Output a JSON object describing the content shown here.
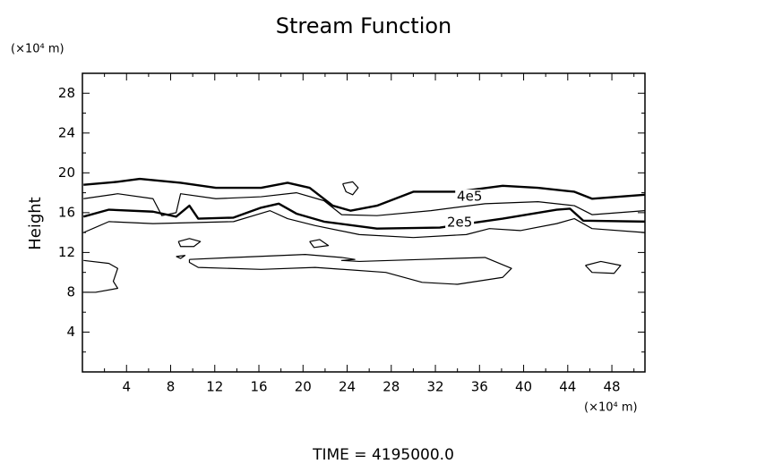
{
  "chart_data": {
    "type": "contour",
    "title": "Stream Function",
    "ylabel": "Height",
    "yunit": "(×10⁴ m)",
    "xunit": "(×10⁴ m)",
    "annotation": "TIME = 4195000.0",
    "xlim": [
      0,
      51
    ],
    "ylim": [
      0,
      30
    ],
    "xticks": [
      4,
      8,
      12,
      16,
      20,
      24,
      28,
      32,
      36,
      40,
      44,
      48
    ],
    "yticks": [
      4,
      8,
      12,
      16,
      20,
      24,
      28
    ],
    "color": "#000000",
    "contours": [
      {
        "level": 400000,
        "label": "4e5",
        "label_xy": [
          35.1,
          17.6
        ],
        "width": 2,
        "x": [
          0.1,
          3.2,
          5.2,
          8.9,
          12.1,
          16.2,
          18.6,
          20.6,
          22.7,
          24.3,
          26.7,
          30.0,
          34.0,
          38.1,
          41.3,
          44.6,
          46.2,
          51
        ],
        "y": [
          18.8,
          19.1,
          19.4,
          19.0,
          18.5,
          18.5,
          19.0,
          18.5,
          16.7,
          16.2,
          16.7,
          18.1,
          18.1,
          18.7,
          18.5,
          18.1,
          17.4,
          17.8
        ]
      },
      {
        "width": 1,
        "x": [
          0.1,
          3.2,
          6.4,
          7.2,
          8.5,
          8.9,
          12.1,
          16.2,
          19.4,
          21.9,
          23.5,
          26.7,
          31.6,
          36.5,
          41.3,
          44.6,
          46.2,
          51
        ],
        "y": [
          17.4,
          17.9,
          17.4,
          15.7,
          16.0,
          17.9,
          17.4,
          17.6,
          18.0,
          17.2,
          15.8,
          15.7,
          16.2,
          16.9,
          17.1,
          16.7,
          15.8,
          16.2
        ]
      },
      {
        "level": 200000,
        "label": "2e5",
        "label_xy": [
          34.2,
          15.0
        ],
        "width": 2,
        "x": [
          0.1,
          2.4,
          6.4,
          8.5,
          9.7,
          10.5,
          13.7,
          16.2,
          17.8,
          19.4,
          21.9,
          26.7,
          32.4,
          38.1,
          43,
          44.2,
          45.4,
          51
        ],
        "y": [
          15.6,
          16.3,
          16.1,
          15.6,
          16.7,
          15.4,
          15.5,
          16.5,
          16.9,
          15.9,
          15.1,
          14.4,
          14.5,
          15.4,
          16.3,
          16.4,
          15.2,
          15.1
        ]
      },
      {
        "width": 1,
        "x": [
          0.1,
          2.4,
          6.4,
          13.7,
          17,
          18.6,
          21.1,
          25.1,
          30,
          34.8,
          36.9,
          39.7,
          43,
          44.6,
          46.2,
          51
        ],
        "y": [
          14.0,
          15.1,
          14.9,
          15.1,
          16.2,
          15.4,
          14.7,
          13.8,
          13.5,
          13.8,
          14.4,
          14.2,
          14.9,
          15.4,
          14.4,
          14.0
        ]
      },
      {
        "width": 1,
        "x": [
          0.1,
          2.4,
          3.2,
          2.8,
          3.2,
          1.2,
          0.1
        ],
        "y": [
          11.2,
          10.9,
          10.4,
          9.1,
          8.4,
          8.0,
          8.0
        ]
      },
      {
        "width": 1,
        "x": [
          9.7,
          13.7,
          20.2,
          23.5,
          24.7,
          23.5,
          25.1,
          30.8,
          36.5,
          38.9,
          38.1,
          34.0,
          30.8,
          27.5,
          21.1,
          16.2,
          10.5,
          9.7,
          9.7
        ],
        "y": [
          11.3,
          11.5,
          11.8,
          11.5,
          11.3,
          11.2,
          11.1,
          11.3,
          11.5,
          10.4,
          9.5,
          8.8,
          9.0,
          10.0,
          10.5,
          10.3,
          10.5,
          11.0,
          11.3
        ]
      },
      {
        "width": 1,
        "x": [
          8.7,
          9.7,
          10.7,
          10.1,
          8.9,
          8.7
        ],
        "y": [
          13.1,
          13.4,
          13.1,
          12.6,
          12.6,
          13.1
        ]
      },
      {
        "width": 1,
        "x": [
          20.6,
          21.5,
          22.3,
          21.0,
          20.6
        ],
        "y": [
          13.1,
          13.3,
          12.7,
          12.5,
          13.1
        ]
      },
      {
        "width": 1,
        "x": [
          23.6,
          24.5,
          25.0,
          24.5,
          23.9,
          23.6
        ],
        "y": [
          18.9,
          19.1,
          18.5,
          17.8,
          18.1,
          18.9
        ]
      },
      {
        "width": 1,
        "x": [
          45.6,
          47.0,
          48.8,
          48.2,
          46.2,
          45.6
        ],
        "y": [
          10.7,
          11.1,
          10.7,
          9.9,
          10.0,
          10.7
        ]
      },
      {
        "width": 1,
        "x": [
          8.5,
          9.3,
          8.9,
          8.5
        ],
        "y": [
          11.6,
          11.7,
          11.4,
          11.6
        ]
      }
    ]
  }
}
